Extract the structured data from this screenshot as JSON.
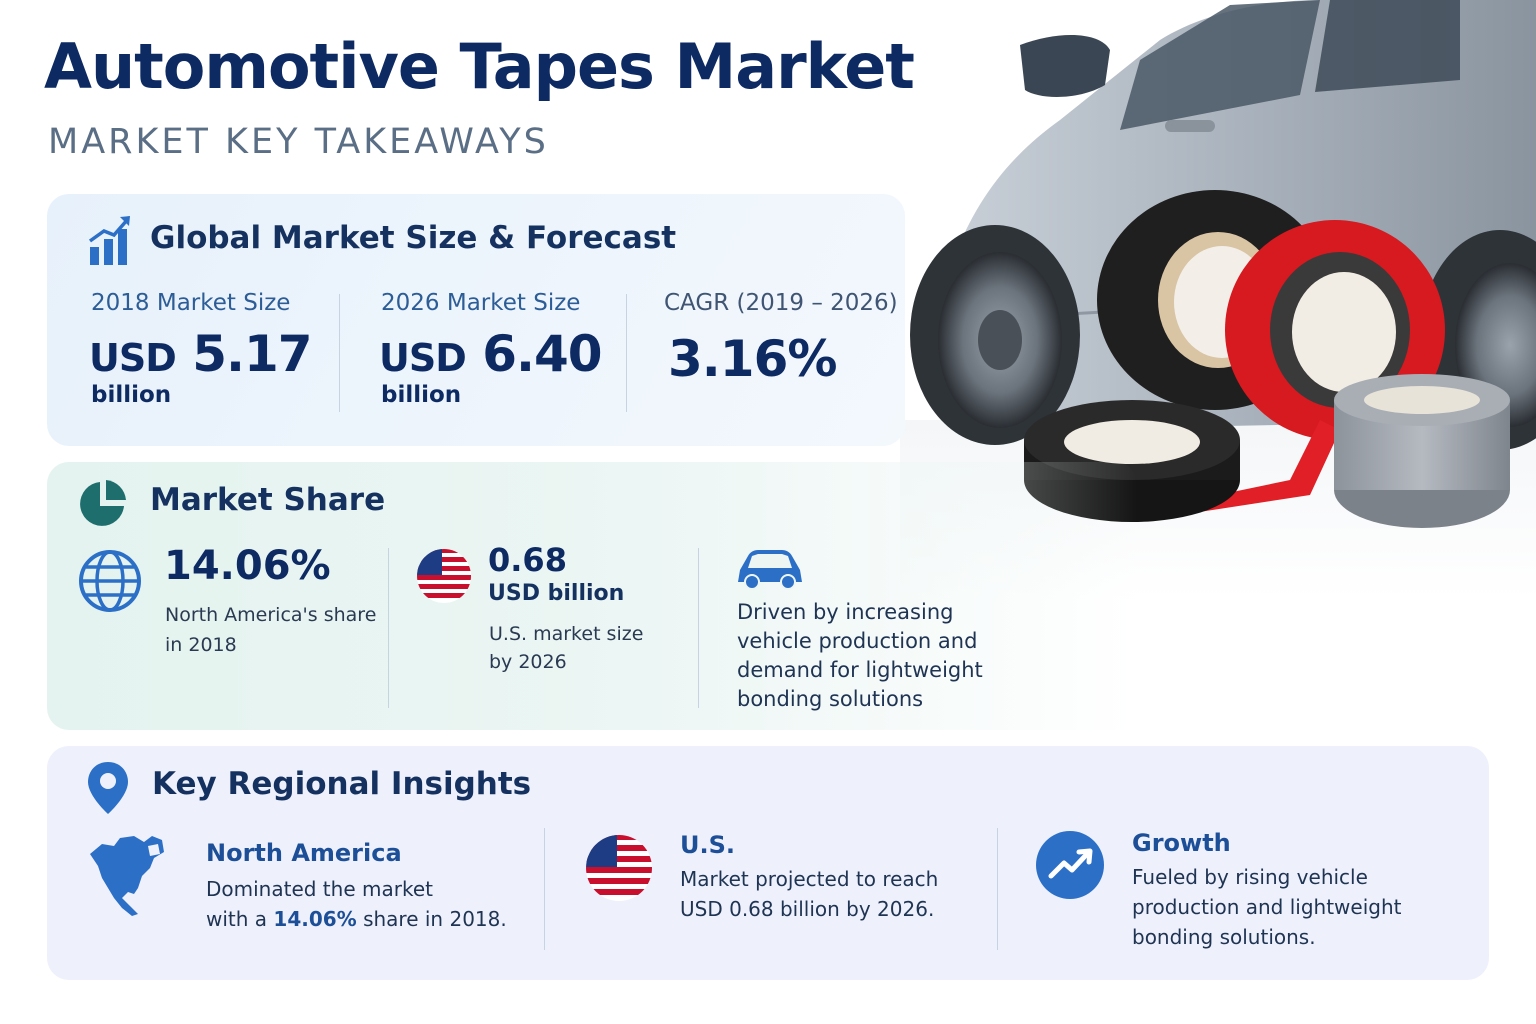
{
  "header": {
    "title": "Automotive Tapes Market",
    "subtitle": "MARKET KEY TAKEAWAYS"
  },
  "colors": {
    "navy": "#0d2a63",
    "blue_accent": "#1c4f97",
    "teal_icon": "#1f6e6e",
    "tape_red": "#e01f26",
    "tape_black": "#1c1c1c",
    "tape_gray": "#9aa0a8"
  },
  "global": {
    "title": "Global Market Size & Forecast",
    "icon": "bar-chart-growth-icon",
    "stats": [
      {
        "label": "2018 Market Size",
        "currency": "USD",
        "value": "5.17",
        "unit": "billion"
      },
      {
        "label": "2026 Market Size",
        "currency": "USD",
        "value": "6.40",
        "unit": "billion"
      },
      {
        "label": "CAGR (2019 – 2026)",
        "value": "3.16%"
      }
    ]
  },
  "share": {
    "title": "Market Share",
    "icon": "pie-chart-icon",
    "na": {
      "icon": "globe-icon",
      "value": "14.06%",
      "desc_line1": "North America's share",
      "desc_line2": "in 2018"
    },
    "us": {
      "icon": "us-flag-icon",
      "value": "0.68",
      "unit": "USD billion",
      "desc_line1": "U.S. market size",
      "desc_line2": "by 2026"
    },
    "driver": {
      "icon": "car-icon",
      "lines": [
        "Driven by increasing",
        "vehicle production and",
        "demand for lightweight",
        "bonding solutions"
      ]
    }
  },
  "regional": {
    "title": "Key Regional Insights",
    "icon": "location-pin-icon",
    "items": [
      {
        "icon": "north-america-map-icon",
        "heading": "North America",
        "line1": "Dominated the market",
        "line2_pre": "with a ",
        "line2_hl": "14.06%",
        "line2_post": " share in 2018."
      },
      {
        "icon": "us-flag-icon",
        "heading": "U.S.",
        "line1": "Market projected to reach",
        "line2": "USD 0.68 billion by 2026."
      },
      {
        "icon": "trend-up-icon",
        "heading": "Growth",
        "line1": "Fueled by rising vehicle",
        "line2": "production and lightweight",
        "line3": "bonding solutions."
      }
    ]
  }
}
